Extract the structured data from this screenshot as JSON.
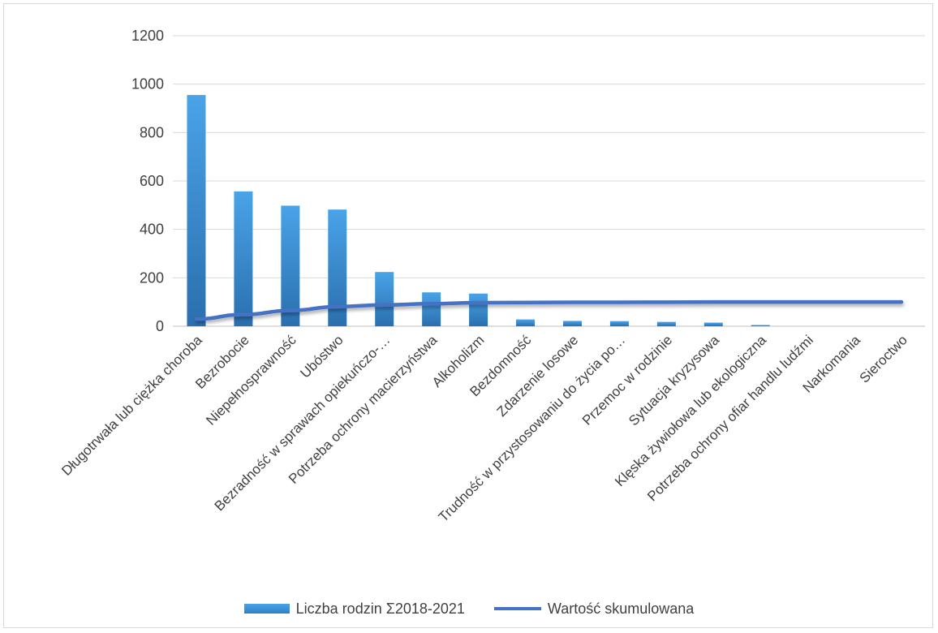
{
  "chart_data": {
    "type": "bar",
    "title": "",
    "xlabel": "",
    "ylabel": "",
    "ylim": [
      0,
      1200
    ],
    "yticks": [
      0,
      200,
      400,
      600,
      800,
      1000,
      1200
    ],
    "grid": true,
    "legend_position": "bottom",
    "categories": [
      "Długotrwała lub ciężka choroba",
      "Bezrobocie",
      "Niepełnosprawność",
      "Ubóstwo",
      "Bezradność w sprawach opiekuńczo-…",
      "Potrzeba ochrony macierzyństwa",
      "Alkoholizm",
      "Bezdomność",
      "Zdarzenie losowe",
      "Trudność w przystosowaniu do życia po…",
      "Przemoc w rodzinie",
      "Sytuacja kryzysowa",
      "Klęska żywiołowa lub ekologiczna",
      "Potrzeba ochrony ofiar handlu ludźmi",
      "Narkomania",
      "Sieroctwo"
    ],
    "series": [
      {
        "name": "Liczba rodzin Σ2018-2021",
        "type": "bar",
        "color": "#3a8fd6",
        "values": [
          955,
          557,
          498,
          482,
          224,
          140,
          135,
          28,
          22,
          21,
          18,
          15,
          5,
          0,
          0,
          0
        ]
      },
      {
        "name": "Wartość skumulowana",
        "type": "line",
        "color": "#4472c4",
        "values": [
          30,
          48,
          65,
          81,
          88,
          93,
          97,
          98,
          99,
          99,
          99.5,
          100,
          100,
          100,
          100,
          100
        ]
      }
    ]
  }
}
